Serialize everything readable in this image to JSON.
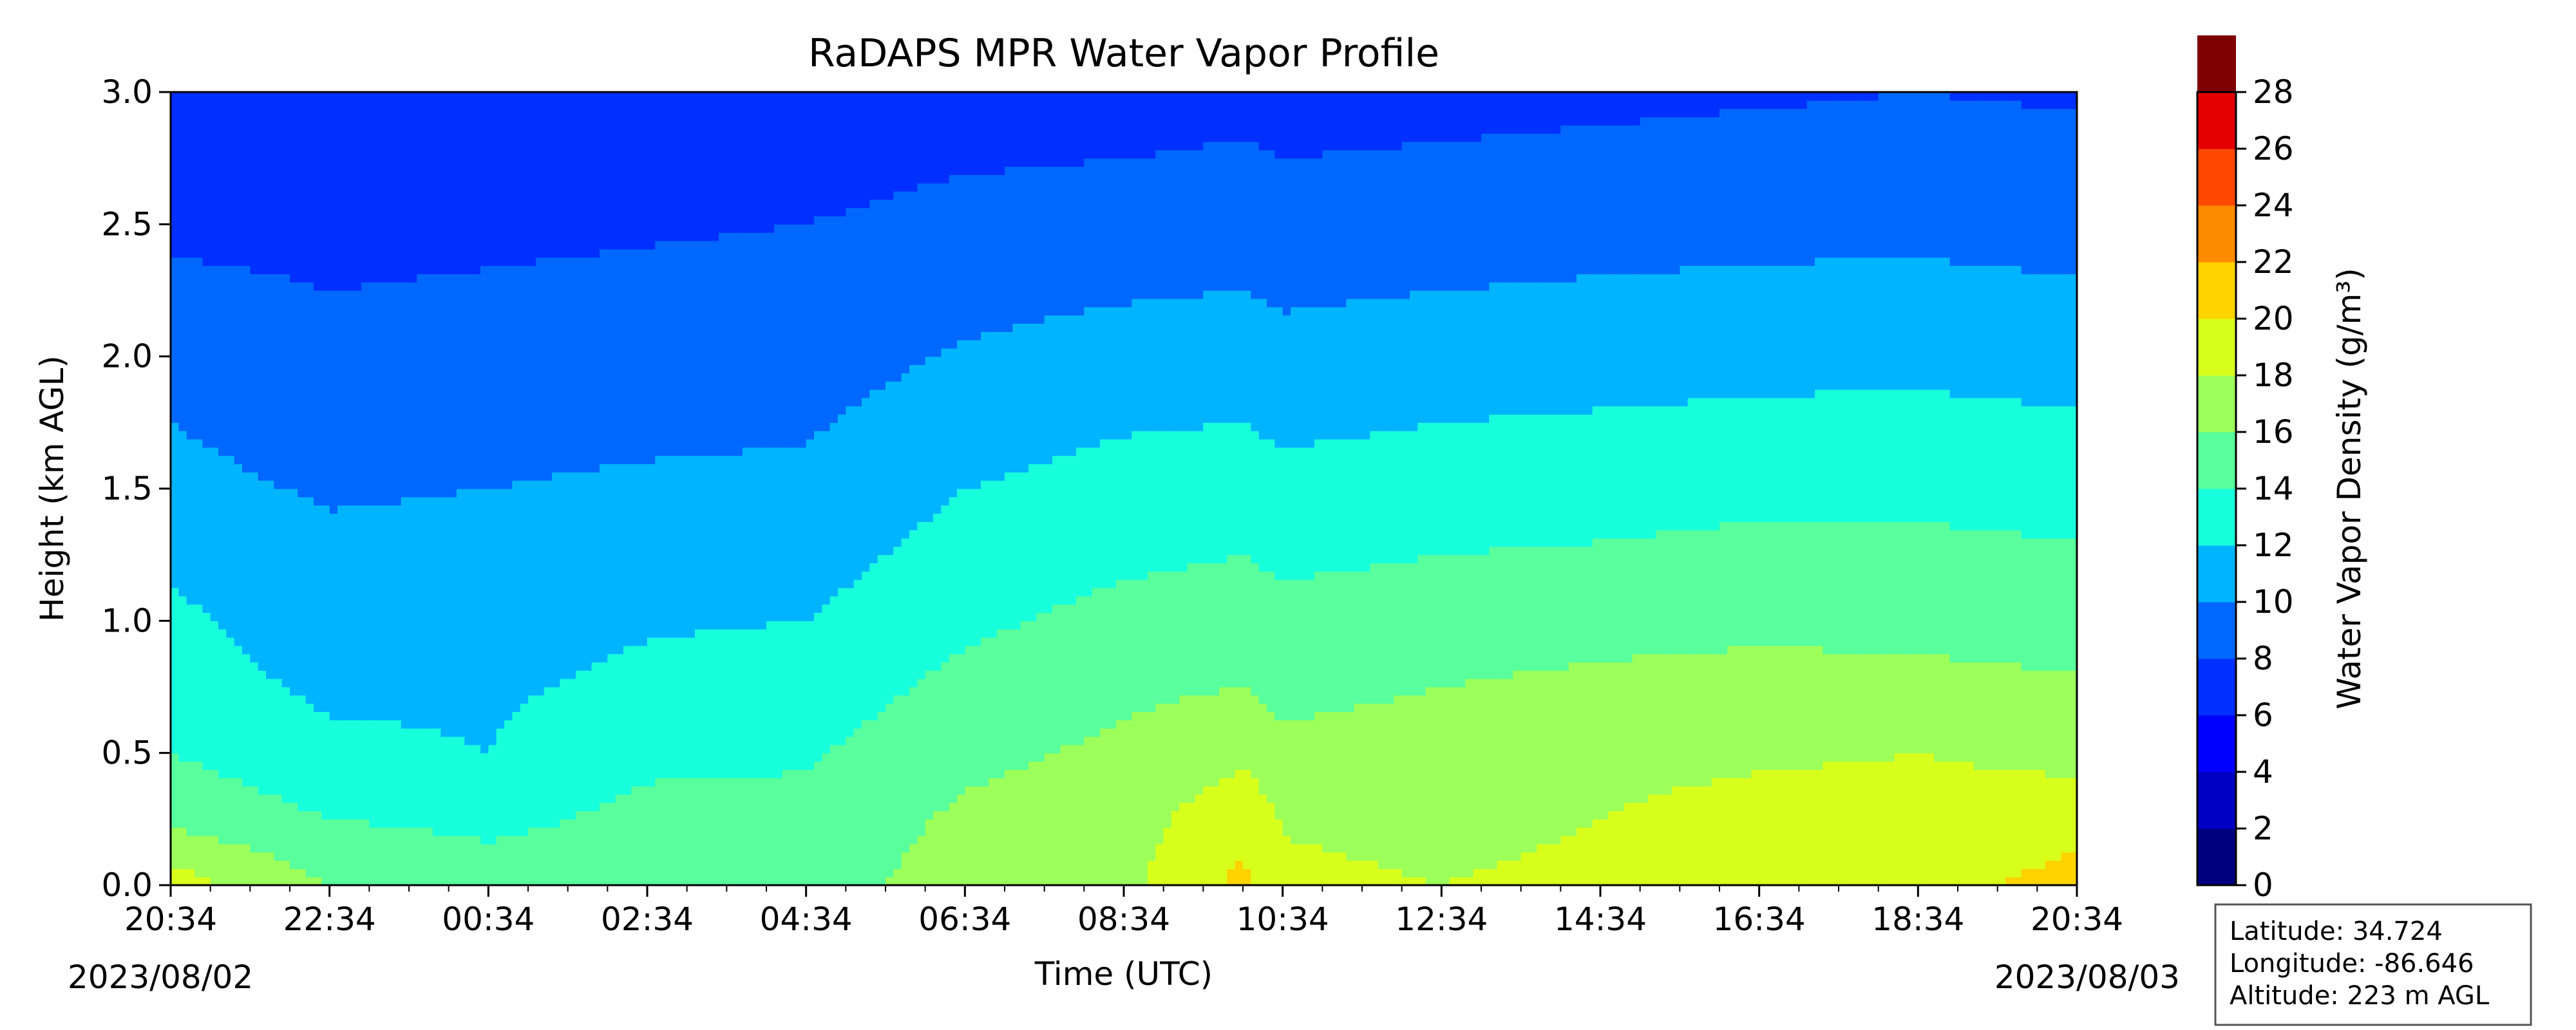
{
  "chart_data": {
    "type": "heatmap",
    "title": "RaDAPS MPR Water Vapor Profile",
    "xlabel": "Time (UTC)",
    "ylabel": "Height (km AGL)",
    "colorbar_label": "Water Vapor Density (g/m³)",
    "x_ticks": [
      "20:34",
      "22:34",
      "00:34",
      "02:34",
      "04:34",
      "06:34",
      "08:34",
      "10:34",
      "12:34",
      "14:34",
      "16:34",
      "18:34",
      "20:34"
    ],
    "x_range": [
      "2023-08-02 20:34",
      "2023-08-03 20:34"
    ],
    "start_date": "2023/08/02",
    "end_date": "2023/08/03",
    "y_ticks": [
      "0.0",
      "0.5",
      "1.0",
      "1.5",
      "2.0",
      "2.5",
      "3.0"
    ],
    "ylim": [
      0,
      3
    ],
    "levels": [
      0,
      2,
      4,
      6,
      8,
      10,
      12,
      14,
      16,
      18,
      20,
      22,
      24,
      26,
      28
    ],
    "level_colors": [
      "#00007f",
      "#0000c4",
      "#0000ff",
      "#0030ff",
      "#0068ff",
      "#00b4ff",
      "#18ffdc",
      "#58ff9c",
      "#9cff5a",
      "#d8ff1c",
      "#ffd300",
      "#ff8c00",
      "#ff4800",
      "#e40000",
      "#7f0000"
    ],
    "y_heights_km": [
      0.0,
      0.25,
      0.5,
      0.75,
      1.0,
      1.25,
      1.5,
      1.75,
      2.0,
      2.25,
      2.5,
      2.75,
      3.0
    ],
    "x_times_hours_after_start": [
      0,
      2,
      4,
      6,
      8,
      10,
      12,
      13.5,
      14,
      16,
      18,
      20,
      22,
      24
    ],
    "density_g_m3": [
      [
        19.0,
        15.5,
        14.0,
        13.0,
        12.5,
        11.5,
        10.5,
        10.0,
        9.5,
        8.5,
        7.5,
        7.0,
        6.2
      ],
      [
        16.0,
        14.0,
        12.5,
        11.6,
        10.8,
        10.4,
        9.8,
        9.2,
        8.6,
        8.0,
        7.4,
        6.8,
        6.2
      ],
      [
        15.0,
        13.5,
        12.0,
        11.7,
        11.0,
        10.6,
        10.0,
        9.4,
        8.8,
        8.2,
        7.6,
        7.0,
        6.5
      ],
      [
        15.0,
        14.5,
        13.6,
        12.5,
        11.8,
        11.0,
        10.3,
        9.6,
        9.0,
        8.4,
        7.8,
        7.2,
        6.6
      ],
      [
        15.0,
        14.5,
        13.8,
        12.8,
        12.0,
        11.2,
        10.4,
        9.8,
        9.2,
        8.6,
        8.0,
        7.3,
        6.7
      ],
      [
        17.0,
        16.4,
        15.5,
        14.6,
        13.6,
        12.8,
        12.0,
        11.0,
        10.2,
        9.4,
        8.6,
        7.8,
        7.0
      ],
      [
        17.5,
        17.0,
        16.4,
        15.6,
        14.6,
        13.6,
        12.8,
        11.8,
        10.8,
        9.8,
        8.8,
        8.0,
        7.2
      ],
      [
        20.5,
        19.5,
        17.5,
        16.0,
        15.0,
        14.0,
        13.0,
        12.0,
        11.0,
        10.0,
        9.0,
        8.2,
        7.5
      ],
      [
        18.5,
        17.8,
        16.6,
        15.4,
        14.6,
        13.6,
        12.6,
        11.6,
        10.6,
        9.7,
        8.8,
        8.0,
        7.2
      ],
      [
        18.0,
        17.4,
        16.8,
        16.0,
        15.0,
        14.0,
        13.0,
        12.0,
        11.0,
        10.0,
        9.0,
        8.2,
        7.4
      ],
      [
        18.5,
        18.0,
        17.2,
        16.4,
        15.4,
        14.2,
        13.2,
        12.2,
        11.2,
        10.2,
        9.3,
        8.4,
        7.6
      ],
      [
        19.5,
        19.0,
        17.6,
        16.6,
        15.6,
        14.6,
        13.4,
        12.4,
        11.4,
        10.4,
        9.4,
        8.6,
        7.8
      ],
      [
        19.5,
        19.0,
        18.0,
        16.5,
        15.5,
        14.5,
        13.5,
        12.5,
        11.5,
        10.5,
        9.5,
        8.7,
        8.0
      ],
      [
        20.5,
        19.5,
        17.2,
        16.2,
        15.2,
        14.2,
        13.2,
        12.2,
        11.2,
        10.2,
        9.2,
        8.5,
        7.8
      ]
    ]
  },
  "info_box": {
    "latitude": "Latitude: 34.724",
    "longitude": "Longitude: -86.646",
    "altitude": "Altitude: 223 m AGL"
  }
}
